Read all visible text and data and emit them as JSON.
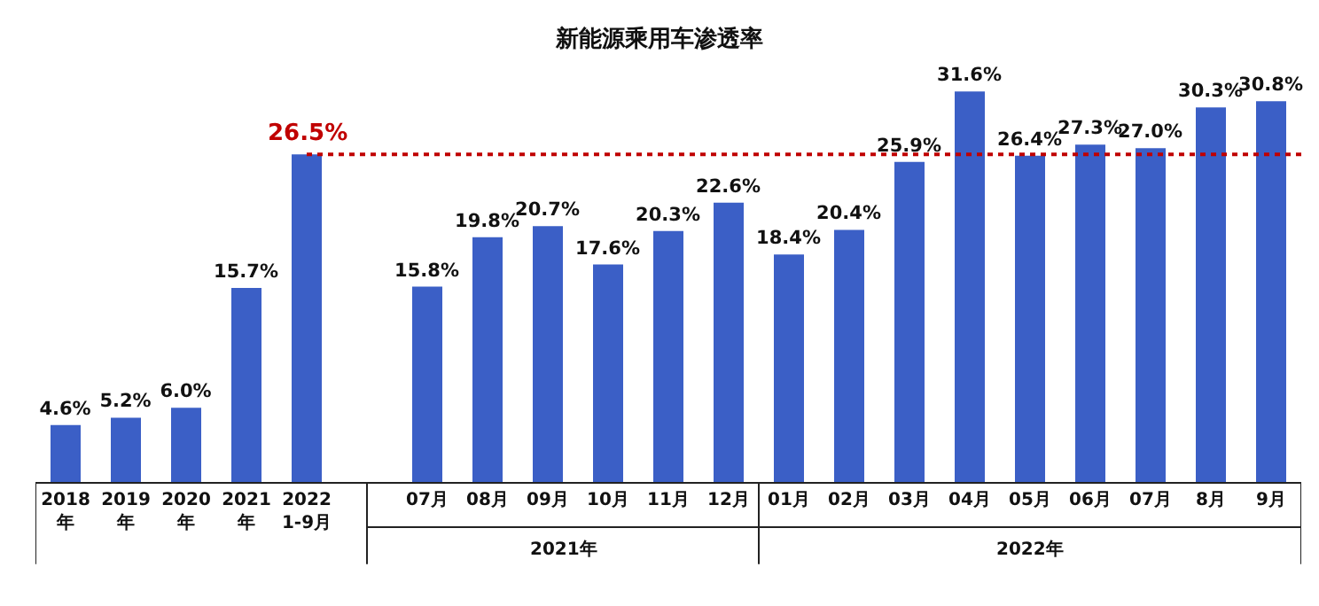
{
  "chart_data": {
    "type": "bar",
    "title": "新能源乘用车渗透率",
    "categories": [
      "2018\n年",
      "2019\n年",
      "2020\n年",
      "2021\n年",
      "2022\n1-9月",
      null,
      "07月",
      "08月",
      "09月",
      "10月",
      "11月",
      "12月",
      "01月",
      "02月",
      "03月",
      "04月",
      "05月",
      "06月",
      "07月",
      "8月",
      "9月"
    ],
    "values": [
      4.6,
      5.2,
      6.0,
      15.7,
      26.5,
      null,
      15.8,
      19.8,
      20.7,
      17.6,
      20.3,
      22.6,
      18.4,
      20.4,
      25.9,
      31.6,
      26.4,
      27.3,
      27.0,
      30.3,
      30.8
    ],
    "value_labels": [
      "4.6%",
      "5.2%",
      "6.0%",
      "15.7%",
      null,
      null,
      "15.8%",
      "19.8%",
      "20.7%",
      "17.6%",
      "20.3%",
      "22.6%",
      "18.4%",
      "20.4%",
      "25.9%",
      "31.6%",
      "26.4%",
      "27.3%",
      "27.0%",
      "30.3%",
      "30.8%"
    ],
    "color": "#3b5fc6",
    "ref_lines": [
      {
        "axis": "y",
        "value": 26.5,
        "label": "26.5%",
        "color": "#c00000",
        "line_style": "dotted"
      }
    ],
    "annotations": [
      "2021年",
      "2022年"
    ],
    "grid": false
  }
}
